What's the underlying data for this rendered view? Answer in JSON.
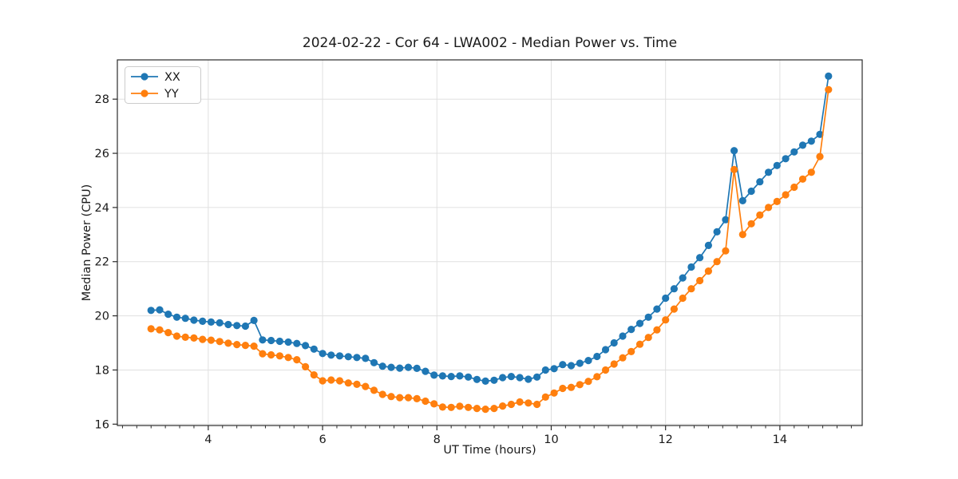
{
  "chart_data": {
    "type": "line",
    "title": "2024-02-22 - Cor 64 - LWA002 - Median Power vs. Time",
    "xlabel": "UT Time (hours)",
    "ylabel": "Median Power (CPU)",
    "xlim": [
      2.41,
      15.44
    ],
    "ylim": [
      15.95,
      29.45
    ],
    "x_major_ticks": [
      4,
      6,
      8,
      10,
      12,
      14
    ],
    "x_minor_tick_step": 0.25,
    "y_major_ticks": [
      16,
      18,
      20,
      22,
      24,
      26,
      28
    ],
    "grid": true,
    "legend_position": "upper-left",
    "background_color": "#ffffff",
    "grid_color": "#e0e0e0",
    "spine_color": "#2b2b2b",
    "x": [
      3.0,
      3.15,
      3.3,
      3.45,
      3.6,
      3.75,
      3.9,
      4.05,
      4.2,
      4.35,
      4.5,
      4.65,
      4.8,
      4.95,
      5.1,
      5.25,
      5.4,
      5.55,
      5.7,
      5.85,
      6.0,
      6.15,
      6.3,
      6.45,
      6.6,
      6.75,
      6.9,
      7.05,
      7.2,
      7.35,
      7.5,
      7.65,
      7.8,
      7.95,
      8.1,
      8.25,
      8.4,
      8.55,
      8.7,
      8.85,
      9.0,
      9.15,
      9.3,
      9.45,
      9.6,
      9.75,
      9.9,
      10.05,
      10.2,
      10.35,
      10.5,
      10.65,
      10.8,
      10.95,
      11.1,
      11.25,
      11.4,
      11.55,
      11.7,
      11.85,
      12.0,
      12.15,
      12.3,
      12.45,
      12.6,
      12.75,
      12.9,
      13.05,
      13.2,
      13.35,
      13.5,
      13.65,
      13.8,
      13.95,
      14.1,
      14.25,
      14.4,
      14.55,
      14.7,
      14.85
    ],
    "series": [
      {
        "name": "XX",
        "color": "#1f77b4",
        "values": [
          20.2,
          20.22,
          20.06,
          19.95,
          19.91,
          19.84,
          19.8,
          19.77,
          19.74,
          19.68,
          19.64,
          19.62,
          19.83,
          19.11,
          19.09,
          19.06,
          19.03,
          18.98,
          18.9,
          18.77,
          18.61,
          18.55,
          18.52,
          18.49,
          18.46,
          18.43,
          18.27,
          18.14,
          18.1,
          18.07,
          18.1,
          18.06,
          17.95,
          17.81,
          17.78,
          17.76,
          17.78,
          17.74,
          17.65,
          17.59,
          17.62,
          17.72,
          17.76,
          17.72,
          17.66,
          17.74,
          18.0,
          18.05,
          18.2,
          18.16,
          18.25,
          18.35,
          18.5,
          18.75,
          19.0,
          19.25,
          19.5,
          19.72,
          19.95,
          20.25,
          20.65,
          21.0,
          21.4,
          21.8,
          22.15,
          22.6,
          23.1,
          23.55,
          26.1,
          24.25,
          24.6,
          24.95,
          25.3,
          25.55,
          25.8,
          26.05,
          26.3,
          26.45,
          26.7,
          28.85
        ]
      },
      {
        "name": "YY",
        "color": "#ff7f0e",
        "values": [
          19.52,
          19.48,
          19.38,
          19.25,
          19.21,
          19.18,
          19.13,
          19.1,
          19.05,
          18.99,
          18.94,
          18.91,
          18.88,
          18.6,
          18.56,
          18.52,
          18.46,
          18.38,
          18.12,
          17.82,
          17.6,
          17.63,
          17.6,
          17.52,
          17.47,
          17.39,
          17.25,
          17.1,
          17.02,
          16.98,
          16.98,
          16.94,
          16.85,
          16.75,
          16.63,
          16.62,
          16.66,
          16.62,
          16.58,
          16.55,
          16.58,
          16.67,
          16.73,
          16.82,
          16.78,
          16.73,
          17.0,
          17.15,
          17.32,
          17.36,
          17.46,
          17.58,
          17.75,
          18.0,
          18.22,
          18.45,
          18.68,
          18.95,
          19.2,
          19.48,
          19.85,
          20.25,
          20.65,
          21.0,
          21.3,
          21.65,
          22.0,
          22.4,
          25.4,
          23.0,
          23.4,
          23.72,
          24.0,
          24.22,
          24.47,
          24.75,
          25.05,
          25.3,
          25.88,
          28.35
        ]
      }
    ]
  }
}
